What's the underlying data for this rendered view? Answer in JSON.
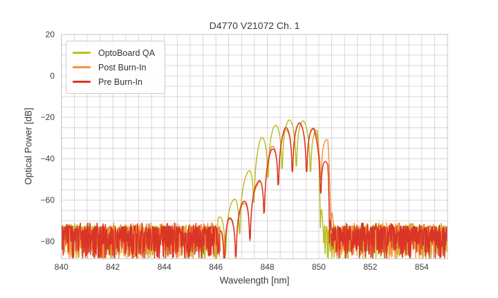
{
  "chart_data": {
    "type": "line",
    "title": "D4770 V21072 Ch. 1",
    "xlabel": "Wavelength [nm]",
    "ylabel": "Optical Power [dB]",
    "xlim": [
      840,
      855
    ],
    "ylim": [
      -88.3,
      20
    ],
    "xticks": [
      840,
      842,
      844,
      846,
      848,
      850,
      852,
      854
    ],
    "yticks": [
      20,
      0,
      -20,
      -40,
      -60,
      -80
    ],
    "grid": {
      "on": true,
      "x_step_nm": 0.5,
      "y_step_db": 5,
      "color": "#cccccc",
      "spine_color": "#c4c4c4"
    },
    "legend_position": "upper-left",
    "mode_spacing_nm": 0.55,
    "null_depth_db": 22,
    "noise_floor": {
      "top_db": -72.6,
      "typical_db": -80,
      "clip_db": -88.3
    },
    "series": [
      {
        "name": "OptoBoard QA",
        "color": "#bcbd22",
        "noise_join_nm": [
          845.95,
          850.17
        ],
        "peaks": [
          [
            846.1,
            -68.5
          ],
          [
            846.65,
            -60.5
          ],
          [
            847.2,
            -47.5
          ],
          [
            847.75,
            -30.0
          ],
          [
            848.3,
            -23.9
          ],
          [
            848.85,
            -21.3
          ],
          [
            849.4,
            -21.7
          ],
          [
            849.95,
            -26.5
          ]
        ]
      },
      {
        "name": "Post Burn-In",
        "color": "#f7923c",
        "noise_join_nm": [
          846.18,
          850.58
        ],
        "peaks": [
          [
            846.5,
            -69.5
          ],
          [
            847.05,
            -62.0
          ],
          [
            847.6,
            -53.0
          ],
          [
            848.15,
            -34.4
          ],
          [
            848.7,
            -26.2
          ],
          [
            849.25,
            -22.6
          ],
          [
            849.8,
            -25.2
          ],
          [
            850.35,
            -31.0
          ]
        ]
      },
      {
        "name": "Pre Burn-In",
        "color": "#d93527",
        "noise_join_nm": [
          846.15,
          850.48
        ],
        "peaks": [
          [
            846.5,
            -69.0
          ],
          [
            847.05,
            -61.0
          ],
          [
            847.6,
            -52.0
          ],
          [
            848.15,
            -36.0
          ],
          [
            848.7,
            -25.0
          ],
          [
            849.25,
            -22.8
          ],
          [
            849.8,
            -25.6
          ],
          [
            850.35,
            -43.0
          ]
        ]
      }
    ]
  }
}
